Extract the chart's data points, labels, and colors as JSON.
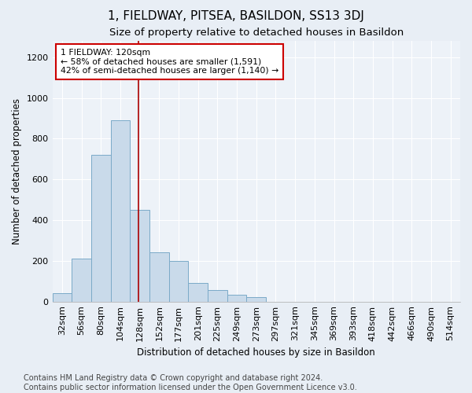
{
  "title": "1, FIELDWAY, PITSEA, BASILDON, SS13 3DJ",
  "subtitle": "Size of property relative to detached houses in Basildon",
  "xlabel": "Distribution of detached houses by size in Basildon",
  "ylabel": "Number of detached properties",
  "categories": [
    "32sqm",
    "56sqm",
    "80sqm",
    "104sqm",
    "128sqm",
    "152sqm",
    "177sqm",
    "201sqm",
    "225sqm",
    "249sqm",
    "273sqm",
    "297sqm",
    "321sqm",
    "345sqm",
    "369sqm",
    "393sqm",
    "418sqm",
    "442sqm",
    "466sqm",
    "490sqm",
    "514sqm"
  ],
  "values": [
    40,
    210,
    720,
    890,
    450,
    240,
    200,
    90,
    55,
    35,
    20,
    0,
    0,
    0,
    0,
    0,
    0,
    0,
    0,
    0,
    0
  ],
  "bar_color": "#c9daea",
  "bar_edge_color": "#7baac8",
  "property_line_index": 4,
  "property_line_color": "#aa0000",
  "annotation_text": "1 FIELDWAY: 120sqm\n← 58% of detached houses are smaller (1,591)\n42% of semi-detached houses are larger (1,140) →",
  "annotation_box_facecolor": "#ffffff",
  "annotation_box_edgecolor": "#cc0000",
  "footer_text": "Contains HM Land Registry data © Crown copyright and database right 2024.\nContains public sector information licensed under the Open Government Licence v3.0.",
  "ylim": [
    0,
    1280
  ],
  "yticks": [
    0,
    200,
    400,
    600,
    800,
    1000,
    1200
  ],
  "bg_color": "#e8eef5",
  "plot_bg_color": "#edf2f8",
  "grid_color": "#ffffff",
  "title_fontsize": 11,
  "subtitle_fontsize": 9.5,
  "axis_label_fontsize": 8.5,
  "tick_fontsize": 8,
  "footer_fontsize": 7
}
